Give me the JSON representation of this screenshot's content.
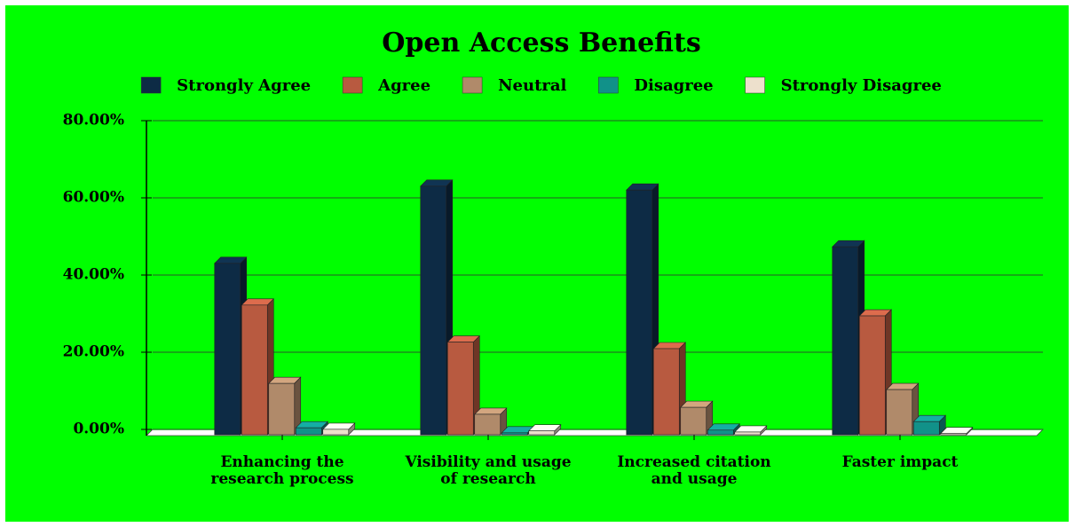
{
  "chart_data": {
    "type": "bar3d",
    "title": "Open Access Benefits",
    "categories": [
      "Enhancing the research process",
      "Visibility and usage of research",
      "Increased citation and usage",
      "Faster impact"
    ],
    "series": [
      {
        "name": "Strongly Agree",
        "color": "#0d2b45",
        "values": [
          44.4,
          64.4,
          63.4,
          48.7
        ]
      },
      {
        "name": "Agree",
        "color": "#b85a40",
        "values": [
          33.6,
          24,
          22.3,
          30.8
        ]
      },
      {
        "name": "Neutral",
        "color": "#b08a6a",
        "values": [
          13.3,
          5.3,
          7.1,
          11.7
        ]
      },
      {
        "name": "Disagree",
        "color": "#119189",
        "values": [
          1.8,
          0.5,
          1.2,
          3.4
        ]
      },
      {
        "name": "Strongly Disagree",
        "color": "#ede0cc",
        "values": [
          1.4,
          1,
          0.7,
          0.3
        ]
      }
    ],
    "ylim": [
      0,
      80
    ],
    "yticks": [
      {
        "value": 0,
        "label": "0.00%"
      },
      {
        "value": 20,
        "label": "20.00%"
      },
      {
        "value": 40,
        "label": "40.00%"
      },
      {
        "value": 60,
        "label": "60.00%"
      },
      {
        "value": 80,
        "label": "80.00%"
      }
    ],
    "grid": true
  }
}
